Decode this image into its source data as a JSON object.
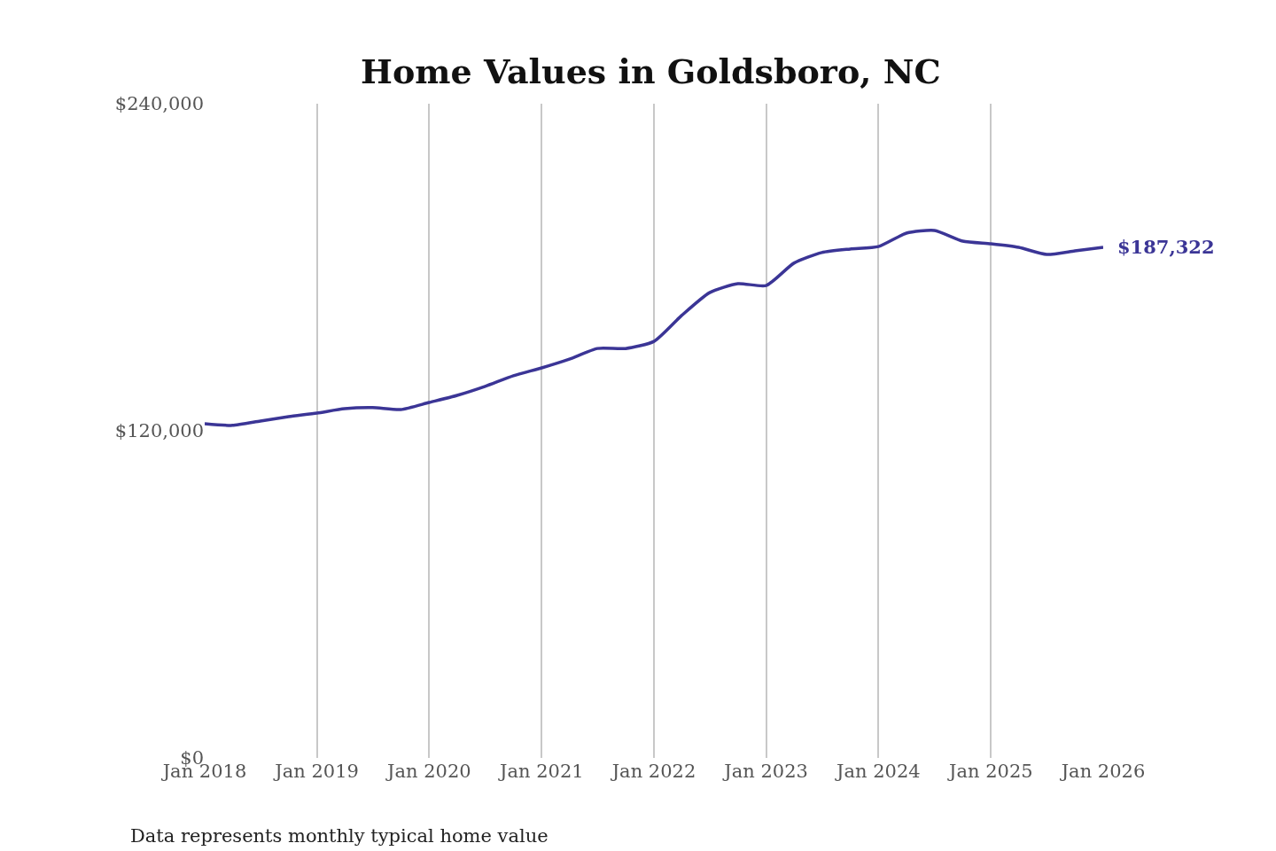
{
  "chart_data": {
    "type": "line",
    "title": "Home Values in Goldsboro, NC",
    "x": [
      "2018-01",
      "2018-04",
      "2018-07",
      "2018-10",
      "2019-01",
      "2019-04",
      "2019-07",
      "2019-10",
      "2020-01",
      "2020-04",
      "2020-07",
      "2020-10",
      "2021-01",
      "2021-04",
      "2021-07",
      "2021-10",
      "2022-01",
      "2022-04",
      "2022-07",
      "2022-10",
      "2023-01",
      "2023-04",
      "2023-07",
      "2023-10",
      "2024-01",
      "2024-04",
      "2024-07",
      "2024-10",
      "2025-01",
      "2025-04",
      "2025-07",
      "2025-10",
      "2026-01"
    ],
    "series": [
      {
        "color": "#3b3596",
        "values": [
          122600,
          122000,
          123600,
          125200,
          126500,
          128100,
          128500,
          127800,
          130400,
          133000,
          136300,
          140200,
          143100,
          146300,
          150200,
          150200,
          152800,
          162300,
          170700,
          174000,
          173300,
          181500,
          185400,
          186700,
          187600,
          192500,
          193500,
          189600,
          188600,
          187300,
          184700,
          186000,
          187322
        ]
      }
    ],
    "xlim": [
      "2018-01-01",
      "2026-01-01"
    ],
    "xticks": [
      {
        "value": "2018-01",
        "label": "Jan 2018"
      },
      {
        "value": "2019-01",
        "label": "Jan 2019"
      },
      {
        "value": "2020-01",
        "label": "Jan 2020"
      },
      {
        "value": "2021-01",
        "label": "Jan 2021"
      },
      {
        "value": "2022-01",
        "label": "Jan 2022"
      },
      {
        "value": "2023-01",
        "label": "Jan 2023"
      },
      {
        "value": "2024-01",
        "label": "Jan 2024"
      },
      {
        "value": "2025-01",
        "label": "Jan 2025"
      },
      {
        "value": "2026-01",
        "label": "Jan 2026"
      }
    ],
    "ylim": [
      0,
      240000
    ],
    "yticks": [
      {
        "value": 0,
        "label": "$0"
      },
      {
        "value": 120000,
        "label": "$120,000"
      },
      {
        "value": 240000,
        "label": "$240,000"
      }
    ],
    "grid": "x",
    "marker": "none",
    "line_style": "solid",
    "annotations": [
      {
        "text": "$187,322",
        "x": "2026-01",
        "y": 187322
      },
      "Data represents monthly typical home value"
    ]
  }
}
